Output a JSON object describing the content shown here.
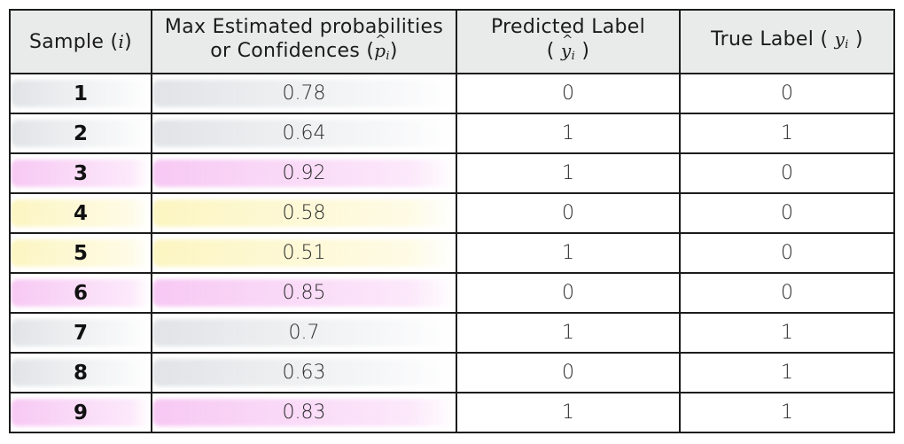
{
  "table": {
    "headers": {
      "sample": {
        "text": "Sample (",
        "symbol": "i",
        "close": ")"
      },
      "confidence": {
        "line1": "Max Estimated probabilities",
        "line2_text": "or Confidences (",
        "symbol": "p",
        "sub": "i",
        "close": ")"
      },
      "predicted": {
        "line1": "Predicted Label",
        "open": "(",
        "symbol": "y",
        "sub": "i",
        "close": ")"
      },
      "true": {
        "text": "True Label (",
        "symbol": "y",
        "sub": "i",
        "close": ")"
      }
    },
    "rows": [
      {
        "sample": "1",
        "confidence": "0.78",
        "predicted": "0",
        "true": "0",
        "highlight": "gray"
      },
      {
        "sample": "2",
        "confidence": "0.64",
        "predicted": "1",
        "true": "1",
        "highlight": "gray"
      },
      {
        "sample": "3",
        "confidence": "0.92",
        "predicted": "1",
        "true": "0",
        "highlight": "pink"
      },
      {
        "sample": "4",
        "confidence": "0.58",
        "predicted": "0",
        "true": "0",
        "highlight": "yellow"
      },
      {
        "sample": "5",
        "confidence": "0.51",
        "predicted": "1",
        "true": "0",
        "highlight": "yellow"
      },
      {
        "sample": "6",
        "confidence": "0.85",
        "predicted": "0",
        "true": "0",
        "highlight": "pink"
      },
      {
        "sample": "7",
        "confidence": "0.7",
        "predicted": "1",
        "true": "1",
        "highlight": "gray"
      },
      {
        "sample": "8",
        "confidence": "0.63",
        "predicted": "0",
        "true": "1",
        "highlight": "gray"
      },
      {
        "sample": "9",
        "confidence": "0.83",
        "predicted": "1",
        "true": "1",
        "highlight": "pink"
      }
    ]
  },
  "colors": {
    "header_bg": "#e9eaea",
    "border": "#1c1c1c",
    "highlight_gray": "#c8cdd2",
    "highlight_pink": "#f4b6f0",
    "highlight_yellow": "#fcf5be"
  }
}
